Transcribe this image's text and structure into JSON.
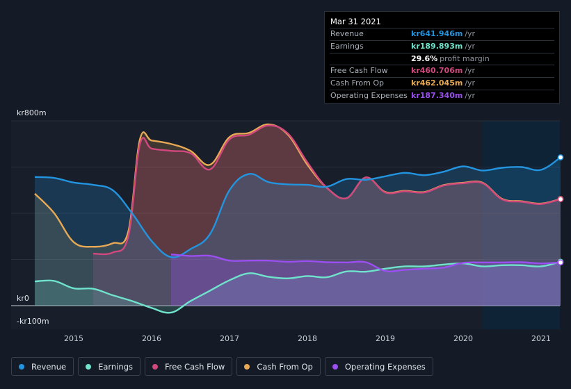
{
  "tooltip": {
    "date": "Mar 31 2021",
    "rows": [
      {
        "label": "Revenue",
        "value": "kr641.946m",
        "unit": "/yr",
        "color": "#2394df"
      },
      {
        "label": "Earnings",
        "value": "kr189.893m",
        "unit": "/yr",
        "color": "#6fe3cb"
      },
      {
        "label": "",
        "value": "29.6%",
        "unit": "profit margin",
        "color": "#ffffff"
      },
      {
        "label": "Free Cash Flow",
        "value": "kr460.706m",
        "unit": "/yr",
        "color": "#d1487e"
      },
      {
        "label": "Cash From Op",
        "value": "kr462.045m",
        "unit": "/yr",
        "color": "#e8a955"
      },
      {
        "label": "Operating Expenses",
        "value": "kr187.340m",
        "unit": "/yr",
        "color": "#9b4ff1"
      }
    ]
  },
  "legend": [
    {
      "label": "Revenue",
      "color": "#2394df"
    },
    {
      "label": "Earnings",
      "color": "#6fe3cb"
    },
    {
      "label": "Free Cash Flow",
      "color": "#d1487e"
    },
    {
      "label": "Cash From Op",
      "color": "#e8a955"
    },
    {
      "label": "Operating Expenses",
      "color": "#9b4ff1"
    }
  ],
  "chart_data": {
    "type": "area",
    "y_tick_labels": [
      "kr800m",
      "kr0",
      "-kr100m"
    ],
    "ylim": [
      -100,
      800
    ],
    "xlim": [
      2014.5,
      2021.25
    ],
    "x_ticks": [
      2015,
      2016,
      2017,
      2018,
      2019,
      2020,
      2021
    ],
    "x_tick_labels": [
      "2015",
      "2016",
      "2017",
      "2018",
      "2019",
      "2020",
      "2021"
    ],
    "grid": true,
    "highlight_from": 2020.25,
    "series": [
      {
        "name": "Revenue",
        "color": "#2394df",
        "points": [
          [
            2014.5,
            557
          ],
          [
            2014.75,
            553
          ],
          [
            2015,
            533
          ],
          [
            2015.25,
            523
          ],
          [
            2015.5,
            500
          ],
          [
            2015.75,
            400
          ],
          [
            2016,
            280
          ],
          [
            2016.25,
            210
          ],
          [
            2016.5,
            245
          ],
          [
            2016.75,
            310
          ],
          [
            2017,
            500
          ],
          [
            2017.25,
            570
          ],
          [
            2017.5,
            535
          ],
          [
            2017.75,
            525
          ],
          [
            2018,
            523
          ],
          [
            2018.25,
            515
          ],
          [
            2018.5,
            548
          ],
          [
            2018.75,
            545
          ],
          [
            2019,
            560
          ],
          [
            2019.25,
            575
          ],
          [
            2019.5,
            565
          ],
          [
            2019.75,
            580
          ],
          [
            2020,
            603
          ],
          [
            2020.25,
            585
          ],
          [
            2020.5,
            597
          ],
          [
            2020.75,
            600
          ],
          [
            2021,
            588
          ],
          [
            2021.25,
            642
          ]
        ]
      },
      {
        "name": "Earnings",
        "color": "#6fe3cb",
        "points": [
          [
            2014.5,
            105
          ],
          [
            2014.75,
            107
          ],
          [
            2015,
            75
          ],
          [
            2015.25,
            73
          ],
          [
            2015.5,
            45
          ],
          [
            2015.75,
            20
          ],
          [
            2016,
            -10
          ],
          [
            2016.25,
            -30
          ],
          [
            2016.5,
            20
          ],
          [
            2016.75,
            65
          ],
          [
            2017,
            110
          ],
          [
            2017.25,
            140
          ],
          [
            2017.5,
            125
          ],
          [
            2017.75,
            118
          ],
          [
            2018,
            128
          ],
          [
            2018.25,
            123
          ],
          [
            2018.5,
            148
          ],
          [
            2018.75,
            147
          ],
          [
            2019,
            160
          ],
          [
            2019.25,
            170
          ],
          [
            2019.5,
            170
          ],
          [
            2019.75,
            178
          ],
          [
            2020,
            183
          ],
          [
            2020.25,
            170
          ],
          [
            2020.5,
            175
          ],
          [
            2020.75,
            175
          ],
          [
            2021,
            170
          ],
          [
            2021.25,
            190
          ]
        ]
      },
      {
        "name": "Free Cash Flow",
        "color": "#d1487e",
        "points": [
          [
            2015.25,
            225
          ],
          [
            2015.5,
            230
          ],
          [
            2015.7,
            300
          ],
          [
            2015.85,
            700
          ],
          [
            2016,
            680
          ],
          [
            2016.25,
            670
          ],
          [
            2016.5,
            660
          ],
          [
            2016.75,
            590
          ],
          [
            2017,
            720
          ],
          [
            2017.25,
            740
          ],
          [
            2017.5,
            780
          ],
          [
            2017.75,
            745
          ],
          [
            2018,
            620
          ],
          [
            2018.25,
            510
          ],
          [
            2018.5,
            465
          ],
          [
            2018.75,
            555
          ],
          [
            2019,
            490
          ],
          [
            2019.25,
            495
          ],
          [
            2019.5,
            490
          ],
          [
            2019.75,
            520
          ],
          [
            2020,
            530
          ],
          [
            2020.25,
            530
          ],
          [
            2020.5,
            460
          ],
          [
            2020.75,
            450
          ],
          [
            2021,
            440
          ],
          [
            2021.25,
            461
          ]
        ]
      },
      {
        "name": "Cash From Op",
        "color": "#e8a955",
        "points": [
          [
            2014.5,
            485
          ],
          [
            2014.75,
            400
          ],
          [
            2015,
            275
          ],
          [
            2015.25,
            255
          ],
          [
            2015.5,
            270
          ],
          [
            2015.7,
            320
          ],
          [
            2015.85,
            720
          ],
          [
            2016,
            715
          ],
          [
            2016.25,
            700
          ],
          [
            2016.5,
            670
          ],
          [
            2016.75,
            610
          ],
          [
            2017,
            730
          ],
          [
            2017.25,
            748
          ],
          [
            2017.5,
            785
          ],
          [
            2017.75,
            740
          ],
          [
            2018,
            610
          ],
          [
            2018.25,
            510
          ],
          [
            2018.5,
            465
          ],
          [
            2018.75,
            555
          ],
          [
            2019,
            492
          ],
          [
            2019.25,
            497
          ],
          [
            2019.5,
            492
          ],
          [
            2019.75,
            522
          ],
          [
            2020,
            532
          ],
          [
            2020.25,
            532
          ],
          [
            2020.5,
            462
          ],
          [
            2020.75,
            452
          ],
          [
            2021,
            442
          ],
          [
            2021.25,
            462
          ]
        ]
      },
      {
        "name": "Operating Expenses",
        "color": "#9b4ff1",
        "points": [
          [
            2016.25,
            222
          ],
          [
            2016.5,
            215
          ],
          [
            2016.75,
            216
          ],
          [
            2017,
            195
          ],
          [
            2017.25,
            195
          ],
          [
            2017.5,
            195
          ],
          [
            2017.75,
            190
          ],
          [
            2018,
            193
          ],
          [
            2018.25,
            188
          ],
          [
            2018.5,
            187
          ],
          [
            2018.75,
            188
          ],
          [
            2019,
            150
          ],
          [
            2019.25,
            155
          ],
          [
            2019.5,
            160
          ],
          [
            2019.75,
            165
          ],
          [
            2020,
            185
          ],
          [
            2020.25,
            187
          ],
          [
            2020.5,
            187
          ],
          [
            2020.75,
            188
          ],
          [
            2021,
            183
          ],
          [
            2021.25,
            187
          ]
        ]
      }
    ]
  }
}
